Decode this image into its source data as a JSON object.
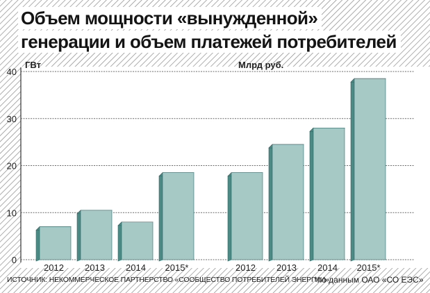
{
  "title_lines": [
    "Объем мощности «вынужденной»",
    "генерации и объем платежей потребителей"
  ],
  "source": "ИСТОЧНИК: НЕКОММЕРЧЕСКОЕ ПАРТНЕРСТВО «СООБЩЕСТВО ПОТРЕБИТЕЛЕЙ ЭНЕРГИИ»",
  "note": "*по данным ОАО «СО ЕЭС»",
  "colors": {
    "bar_front": "#a6c9c6",
    "bar_side": "#4c8a86",
    "bar_edge": "#2e6a66",
    "hatch": "#8a8a8a"
  },
  "chart_data": {
    "type": "bar",
    "ylim": [
      0,
      40
    ],
    "yticks": [
      "0",
      "10",
      "20",
      "30",
      "40"
    ],
    "grid": true,
    "groups": [
      {
        "unit_label": "ГВт",
        "categories": [
          "2012",
          "2013",
          "2014",
          "2015*"
        ],
        "values": [
          7,
          10.5,
          8,
          18.5
        ]
      },
      {
        "unit_label": "Млрд руб.",
        "categories": [
          "2012",
          "2013",
          "2014",
          "2015*"
        ],
        "values": [
          18.5,
          24.5,
          28,
          38.5
        ]
      }
    ]
  }
}
